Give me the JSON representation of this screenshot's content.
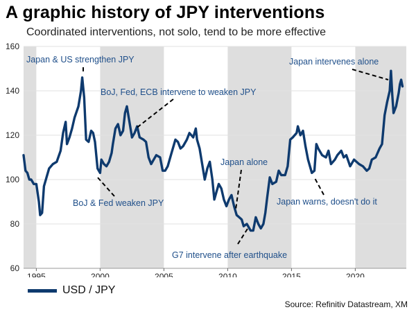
{
  "title": "A graphic history of JPY interventions",
  "subtitle": "Coordinated interventions, not solo, tend to be more effective",
  "legend": {
    "label": "USD / JPY"
  },
  "source": "Source: Refinitiv Datastream, XM",
  "colors": {
    "line": "#0e3a6e",
    "shade": "#dedede",
    "annotation": "#1f4f8a",
    "grid": "#e2e2e2"
  },
  "chart_data": {
    "type": "line",
    "title": "A graphic history of JPY interventions",
    "subtitle": "Coordinated interventions, not solo, tend to be more effective",
    "xlabel": "",
    "ylabel": "",
    "xlim": [
      1994,
      2024
    ],
    "ylim": [
      60,
      160
    ],
    "x_ticks": [
      1995,
      2000,
      2005,
      2010,
      2015,
      2020
    ],
    "y_ticks": [
      60,
      80,
      100,
      120,
      140,
      160
    ],
    "grid": true,
    "legend": "bottom-left",
    "shaded_periods": [
      [
        1994.0,
        1995.0
      ],
      [
        2000.0,
        2005.0
      ],
      [
        2010.0,
        2015.0
      ],
      [
        2020.0,
        2024.0
      ]
    ],
    "series": [
      {
        "name": "USD / JPY",
        "points": [
          [
            1994.0,
            111
          ],
          [
            1994.15,
            104
          ],
          [
            1994.3,
            103
          ],
          [
            1994.45,
            100
          ],
          [
            1994.6,
            100
          ],
          [
            1994.8,
            98
          ],
          [
            1995.0,
            98
          ],
          [
            1995.2,
            90
          ],
          [
            1995.3,
            84
          ],
          [
            1995.45,
            85
          ],
          [
            1995.6,
            97
          ],
          [
            1995.8,
            101
          ],
          [
            1996.0,
            105
          ],
          [
            1996.3,
            107
          ],
          [
            1996.6,
            108
          ],
          [
            1996.9,
            113
          ],
          [
            1997.1,
            121
          ],
          [
            1997.3,
            126
          ],
          [
            1997.4,
            116
          ],
          [
            1997.6,
            119
          ],
          [
            1997.8,
            123
          ],
          [
            1998.0,
            128
          ],
          [
            1998.3,
            133
          ],
          [
            1998.5,
            140
          ],
          [
            1998.6,
            146
          ],
          [
            1998.75,
            137
          ],
          [
            1998.9,
            118
          ],
          [
            1999.1,
            117
          ],
          [
            1999.3,
            122
          ],
          [
            1999.45,
            121
          ],
          [
            1999.6,
            117
          ],
          [
            1999.8,
            105
          ],
          [
            2000.0,
            103
          ],
          [
            2000.1,
            109
          ],
          [
            2000.3,
            107
          ],
          [
            2000.5,
            106
          ],
          [
            2000.7,
            108
          ],
          [
            2000.9,
            112
          ],
          [
            2001.0,
            116
          ],
          [
            2001.2,
            123
          ],
          [
            2001.4,
            125
          ],
          [
            2001.6,
            120
          ],
          [
            2001.8,
            122
          ],
          [
            2001.95,
            130
          ],
          [
            2002.1,
            133
          ],
          [
            2002.3,
            126
          ],
          [
            2002.5,
            119
          ],
          [
            2002.7,
            121
          ],
          [
            2002.9,
            124
          ],
          [
            2003.1,
            119
          ],
          [
            2003.4,
            118
          ],
          [
            2003.6,
            117
          ],
          [
            2003.8,
            110
          ],
          [
            2004.0,
            107
          ],
          [
            2004.2,
            109
          ],
          [
            2004.4,
            111
          ],
          [
            2004.7,
            110
          ],
          [
            2004.9,
            104
          ],
          [
            2005.1,
            104
          ],
          [
            2005.3,
            106
          ],
          [
            2005.6,
            112
          ],
          [
            2005.9,
            118
          ],
          [
            2006.1,
            117
          ],
          [
            2006.3,
            114
          ],
          [
            2006.5,
            115
          ],
          [
            2006.8,
            118
          ],
          [
            2007.0,
            121
          ],
          [
            2007.3,
            119
          ],
          [
            2007.5,
            123
          ],
          [
            2007.6,
            118
          ],
          [
            2007.8,
            114
          ],
          [
            2008.0,
            107
          ],
          [
            2008.2,
            100
          ],
          [
            2008.4,
            105
          ],
          [
            2008.6,
            108
          ],
          [
            2008.8,
            100
          ],
          [
            2008.95,
            91
          ],
          [
            2009.1,
            94
          ],
          [
            2009.3,
            98
          ],
          [
            2009.5,
            96
          ],
          [
            2009.7,
            91
          ],
          [
            2009.9,
            88
          ],
          [
            2010.1,
            91
          ],
          [
            2010.3,
            93
          ],
          [
            2010.5,
            88
          ],
          [
            2010.7,
            84
          ],
          [
            2010.9,
            83
          ],
          [
            2011.1,
            82
          ],
          [
            2011.25,
            79
          ],
          [
            2011.5,
            80
          ],
          [
            2011.8,
            77
          ],
          [
            2012.0,
            77
          ],
          [
            2012.2,
            83
          ],
          [
            2012.4,
            80
          ],
          [
            2012.6,
            78
          ],
          [
            2012.8,
            80
          ],
          [
            2012.95,
            85
          ],
          [
            2013.1,
            92
          ],
          [
            2013.3,
            101
          ],
          [
            2013.5,
            98
          ],
          [
            2013.8,
            99
          ],
          [
            2014.0,
            104
          ],
          [
            2014.2,
            102
          ],
          [
            2014.5,
            102
          ],
          [
            2014.7,
            106
          ],
          [
            2014.9,
            118
          ],
          [
            2015.1,
            119
          ],
          [
            2015.4,
            121
          ],
          [
            2015.5,
            124
          ],
          [
            2015.7,
            120
          ],
          [
            2015.9,
            122
          ],
          [
            2016.1,
            115
          ],
          [
            2016.3,
            109
          ],
          [
            2016.6,
            103
          ],
          [
            2016.8,
            104
          ],
          [
            2016.95,
            116
          ],
          [
            2017.1,
            114
          ],
          [
            2017.4,
            111
          ],
          [
            2017.7,
            110
          ],
          [
            2017.9,
            113
          ],
          [
            2018.1,
            107
          ],
          [
            2018.4,
            109
          ],
          [
            2018.6,
            111
          ],
          [
            2018.9,
            113
          ],
          [
            2019.1,
            110
          ],
          [
            2019.3,
            111
          ],
          [
            2019.6,
            106
          ],
          [
            2019.9,
            109
          ],
          [
            2020.1,
            108
          ],
          [
            2020.3,
            107
          ],
          [
            2020.6,
            106
          ],
          [
            2020.9,
            104
          ],
          [
            2021.1,
            105
          ],
          [
            2021.3,
            109
          ],
          [
            2021.6,
            110
          ],
          [
            2021.9,
            114
          ],
          [
            2022.1,
            116
          ],
          [
            2022.3,
            129
          ],
          [
            2022.5,
            135
          ],
          [
            2022.7,
            140
          ],
          [
            2022.8,
            149
          ],
          [
            2022.9,
            138
          ],
          [
            2023.0,
            130
          ],
          [
            2023.2,
            133
          ],
          [
            2023.4,
            139
          ],
          [
            2023.5,
            143
          ],
          [
            2023.6,
            145
          ],
          [
            2023.7,
            142
          ]
        ]
      }
    ],
    "annotations": [
      {
        "text": "Japan & US strengthen JPY",
        "point": [
          1998.6,
          146
        ]
      },
      {
        "text": "BoJ, Fed, ECB intervene to weaken JPY",
        "point": [
          2000.8,
          111
        ]
      },
      {
        "text": "BoJ & Fed weaken JPY",
        "point": [
          2000.0,
          103
        ]
      },
      {
        "text": "Japan alone",
        "point": [
          2010.7,
          83
        ]
      },
      {
        "text": "G7 intervene after earthquake",
        "point": [
          2011.25,
          79
        ]
      },
      {
        "text": "Japan intervenes alone",
        "point": [
          2022.8,
          145
        ]
      },
      {
        "text": "Japan warns, doesn't do it",
        "point": [
          2016.8,
          104
        ]
      }
    ]
  }
}
